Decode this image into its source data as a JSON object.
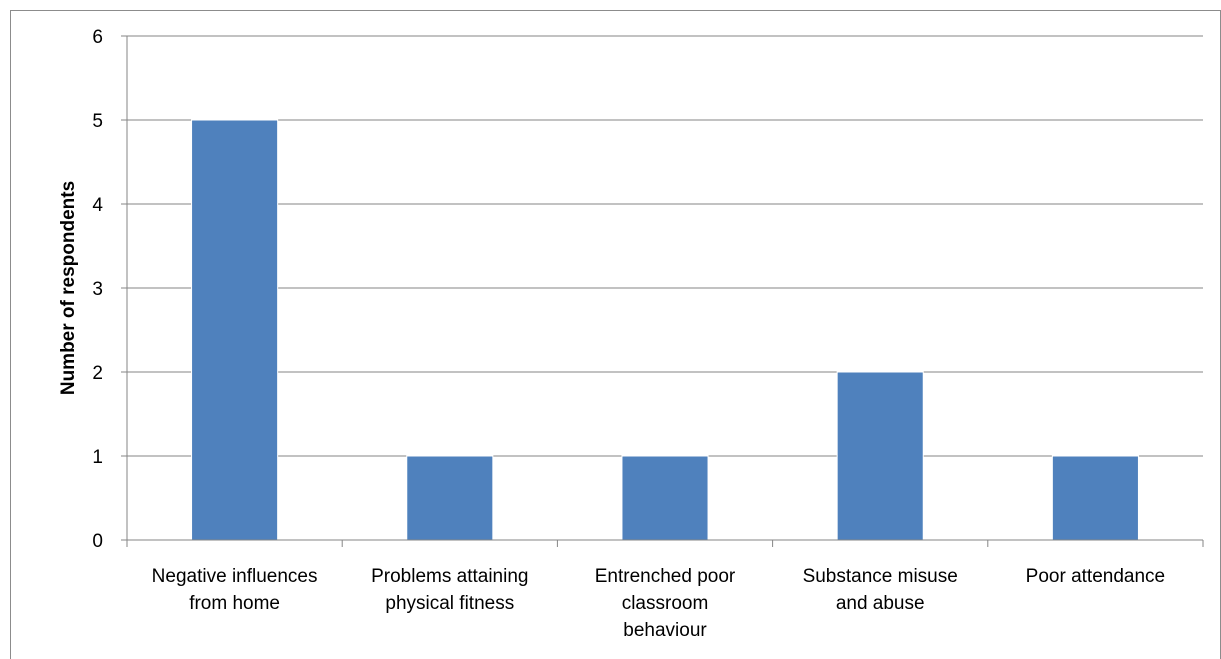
{
  "chart_data": {
    "type": "bar",
    "title": "",
    "xlabel": "",
    "ylabel": "Number of respondents",
    "categories": [
      [
        "Negative influences",
        "from home"
      ],
      [
        "Problems attaining",
        "physical fitness"
      ],
      [
        "Entrenched poor",
        "classroom",
        "behaviour"
      ],
      [
        "Substance misuse",
        "and abuse"
      ],
      [
        "Poor attendance"
      ]
    ],
    "values": [
      5,
      1,
      1,
      2,
      1
    ],
    "ylim": [
      0,
      6
    ],
    "yticks": [
      0,
      1,
      2,
      3,
      4,
      5,
      6
    ],
    "grid": true,
    "legend": "none",
    "colors": {
      "bar": "#4f81bd",
      "bar_edge": "#ffffff",
      "grid": "#868686",
      "axis": "#868686",
      "frame": "#8c8c8c"
    }
  }
}
